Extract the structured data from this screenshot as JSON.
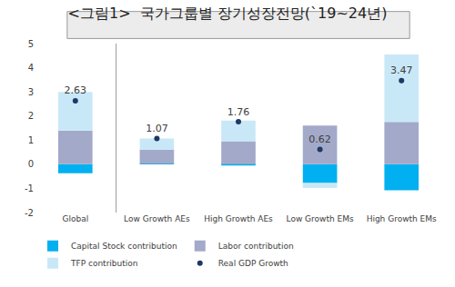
{
  "chart_data": {
    "type": "bar",
    "stacked": true,
    "title": "<그림1>  국가그룹별 장기성장전망(`19~24년)",
    "categories": [
      "Global",
      "Low Growth AEs",
      "High Growth AEs",
      "Low Growth EMs",
      "High Growth EMs"
    ],
    "series": [
      {
        "name": "Capital Stock contribution",
        "type": "bar",
        "color": "#00b0f0",
        "values": [
          -0.37,
          0.02,
          -0.05,
          -0.78,
          -1.08
        ]
      },
      {
        "name": "Labor contribution",
        "type": "bar",
        "color": "#a3a9c9",
        "values": [
          1.4,
          0.58,
          0.95,
          1.6,
          1.75
        ]
      },
      {
        "name": "TFP contribution",
        "type": "bar",
        "color": "#c9e8f7",
        "values": [
          1.6,
          0.47,
          0.86,
          -0.2,
          2.8
        ]
      },
      {
        "name": "Real GDP Growth",
        "type": "scatter",
        "marker": "circle",
        "color": "#1f3864",
        "data_labels": true,
        "values": [
          2.63,
          1.07,
          1.76,
          0.62,
          3.47
        ]
      }
    ],
    "ylim": [
      -2,
      5
    ],
    "yticks": [
      -2,
      -1,
      0,
      1,
      2,
      3,
      4,
      5
    ],
    "grid": false,
    "legend": "bottom"
  }
}
